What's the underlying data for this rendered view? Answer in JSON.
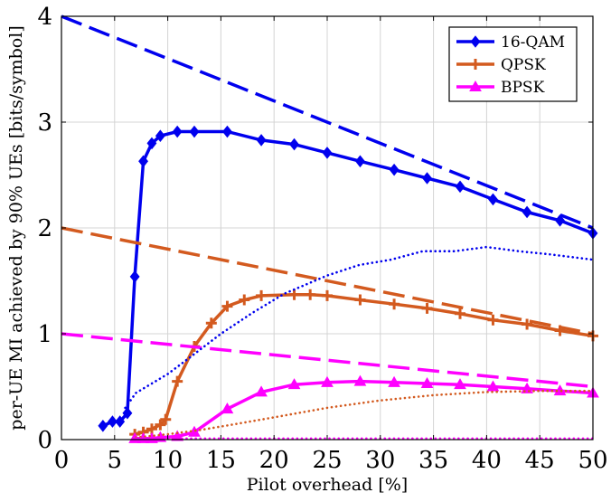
{
  "chart_data": {
    "type": "line",
    "xlabel": "Pilot overhead [%]",
    "ylabel": "per-UE MI achieved by 90% UEs [bits/symbol]",
    "xlim": [
      0,
      50
    ],
    "ylim": [
      0,
      4
    ],
    "xticks": [
      0,
      5,
      10,
      15,
      20,
      25,
      30,
      35,
      40,
      45,
      50
    ],
    "yticks": [
      0,
      1,
      2,
      3,
      4
    ],
    "grid": true,
    "legend_position": "top-right",
    "colors": {
      "16qam": "#0000ee",
      "qpsk": "#d35a1f",
      "bpsk": "#ff00ff"
    },
    "legend": [
      {
        "name": "16-QAM",
        "color": "#0000ee",
        "marker": "diamond"
      },
      {
        "name": "QPSK",
        "color": "#d35a1f",
        "marker": "plus"
      },
      {
        "name": "BPSK",
        "color": "#ff00ff",
        "marker": "triangle"
      }
    ],
    "series": [
      {
        "name": "16-QAM",
        "style": "solid",
        "marker": "diamond",
        "color": "#0000ee",
        "x": [
          3.9,
          4.8,
          5.5,
          6.2,
          6.9,
          7.7,
          8.5,
          9.3,
          10.9,
          12.5,
          15.6,
          18.8,
          21.9,
          25.0,
          28.1,
          31.3,
          34.4,
          37.5,
          40.6,
          43.8,
          46.9,
          50.0
        ],
        "y": [
          0.13,
          0.17,
          0.17,
          0.25,
          1.54,
          2.63,
          2.8,
          2.87,
          2.91,
          2.91,
          2.91,
          2.83,
          2.79,
          2.71,
          2.63,
          2.55,
          2.47,
          2.39,
          2.27,
          2.15,
          2.07,
          1.95
        ]
      },
      {
        "name": "QPSK",
        "style": "solid",
        "marker": "plus",
        "color": "#d35a1f",
        "x": [
          6.9,
          7.7,
          8.5,
          9.3,
          9.8,
          10.9,
          12.5,
          14.1,
          15.6,
          17.2,
          18.8,
          21.9,
          23.4,
          25.0,
          28.1,
          31.3,
          34.4,
          37.5,
          40.6,
          43.8,
          46.9,
          50.0
        ],
        "y": [
          0.05,
          0.07,
          0.1,
          0.14,
          0.19,
          0.55,
          0.88,
          1.1,
          1.26,
          1.32,
          1.36,
          1.37,
          1.37,
          1.36,
          1.32,
          1.28,
          1.24,
          1.19,
          1.13,
          1.09,
          1.03,
          0.98
        ]
      },
      {
        "name": "BPSK",
        "style": "solid",
        "marker": "triangle",
        "color": "#ff00ff",
        "x": [
          6.9,
          7.7,
          8.5,
          9.3,
          10.9,
          12.5,
          15.6,
          18.8,
          21.9,
          25.0,
          28.1,
          31.3,
          34.4,
          37.5,
          40.6,
          43.8,
          46.9,
          50.0
        ],
        "y": [
          0.01,
          0.01,
          0.01,
          0.02,
          0.03,
          0.07,
          0.29,
          0.45,
          0.52,
          0.54,
          0.55,
          0.54,
          0.53,
          0.52,
          0.5,
          0.48,
          0.46,
          0.44
        ]
      },
      {
        "style": "dashed",
        "color": "#0000ee",
        "x": [
          0,
          50
        ],
        "y": [
          4.0,
          2.0
        ]
      },
      {
        "style": "dashed",
        "color": "#d35a1f",
        "x": [
          0,
          50
        ],
        "y": [
          2.0,
          1.0
        ]
      },
      {
        "style": "dashed",
        "color": "#ff00ff",
        "x": [
          0,
          50
        ],
        "y": [
          1.0,
          0.5
        ]
      },
      {
        "style": "dotted",
        "color": "#0000ee",
        "x": [
          6,
          7,
          8,
          10,
          12,
          15,
          18,
          21,
          25,
          28,
          31,
          34,
          37,
          40,
          43,
          46,
          50
        ],
        "y": [
          0.3,
          0.44,
          0.5,
          0.62,
          0.77,
          1.0,
          1.2,
          1.38,
          1.55,
          1.65,
          1.7,
          1.78,
          1.78,
          1.82,
          1.78,
          1.75,
          1.7
        ]
      },
      {
        "style": "dotted",
        "color": "#d35a1f",
        "x": [
          7,
          10,
          13,
          16,
          20,
          25,
          30,
          35,
          40,
          45,
          50
        ],
        "y": [
          0.02,
          0.05,
          0.09,
          0.14,
          0.21,
          0.3,
          0.37,
          0.42,
          0.45,
          0.46,
          0.46
        ]
      },
      {
        "style": "dotted",
        "color": "#ff00ff",
        "x": [
          7,
          50
        ],
        "y": [
          0.01,
          0.01
        ]
      }
    ]
  }
}
